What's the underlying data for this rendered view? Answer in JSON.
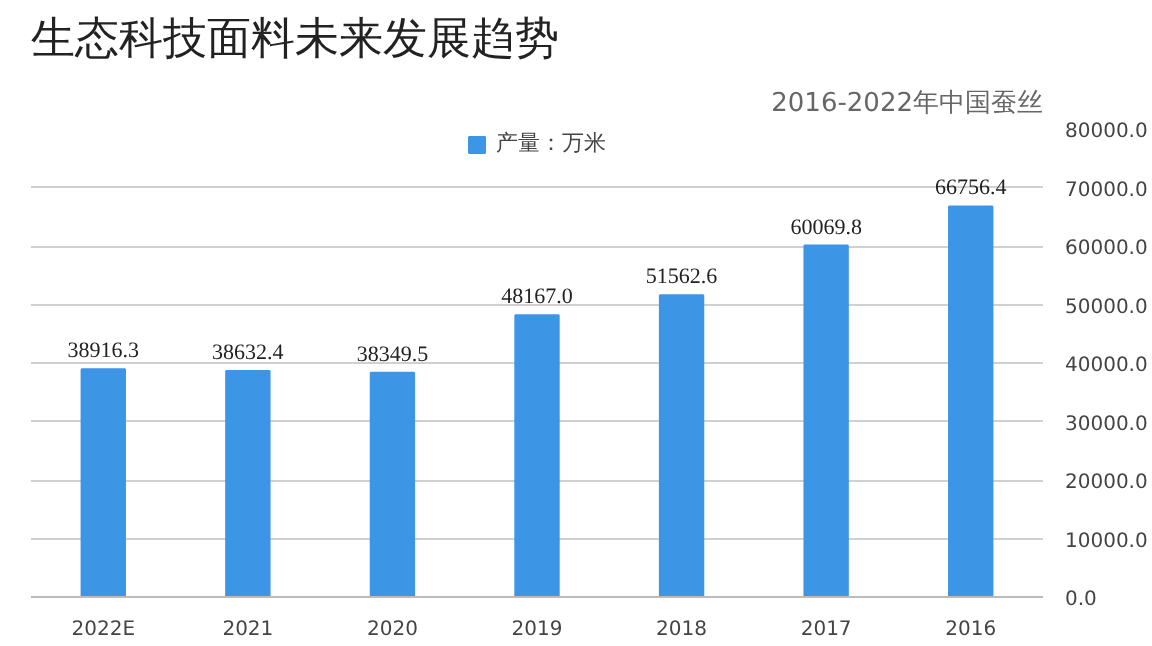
{
  "chart_data": {
    "type": "bar",
    "title": "生态科技面料未来发展趋势",
    "subtitle": "2016-2022年中国蚕丝",
    "categories": [
      "2022E",
      "2021",
      "2020",
      "2019",
      "2018",
      "2017",
      "2016"
    ],
    "series": [
      {
        "name": "产量：万米",
        "color": "#3d95e6",
        "values": [
          38916.3,
          38632.4,
          38349.5,
          48167.0,
          51562.6,
          60069.8,
          66756.4
        ]
      }
    ],
    "value_labels": [
      "38916.3",
      "38632.4",
      "38349.5",
      "48167.0",
      "51562.6",
      "60069.8",
      "66756.4"
    ],
    "ylim": [
      0,
      80000
    ],
    "yticks": [
      {
        "value": 0,
        "label": "0.0"
      },
      {
        "value": 10000,
        "label": "10000.0"
      },
      {
        "value": 20000,
        "label": "20000.0"
      },
      {
        "value": 30000,
        "label": "30000.0"
      },
      {
        "value": 40000,
        "label": "40000.0"
      },
      {
        "value": 50000,
        "label": "50000.0"
      },
      {
        "value": 60000,
        "label": "60000.0"
      },
      {
        "value": 70000,
        "label": "70000.0"
      },
      {
        "value": 80000,
        "label": "80000.0"
      }
    ],
    "grid": "y",
    "legend": "top"
  }
}
